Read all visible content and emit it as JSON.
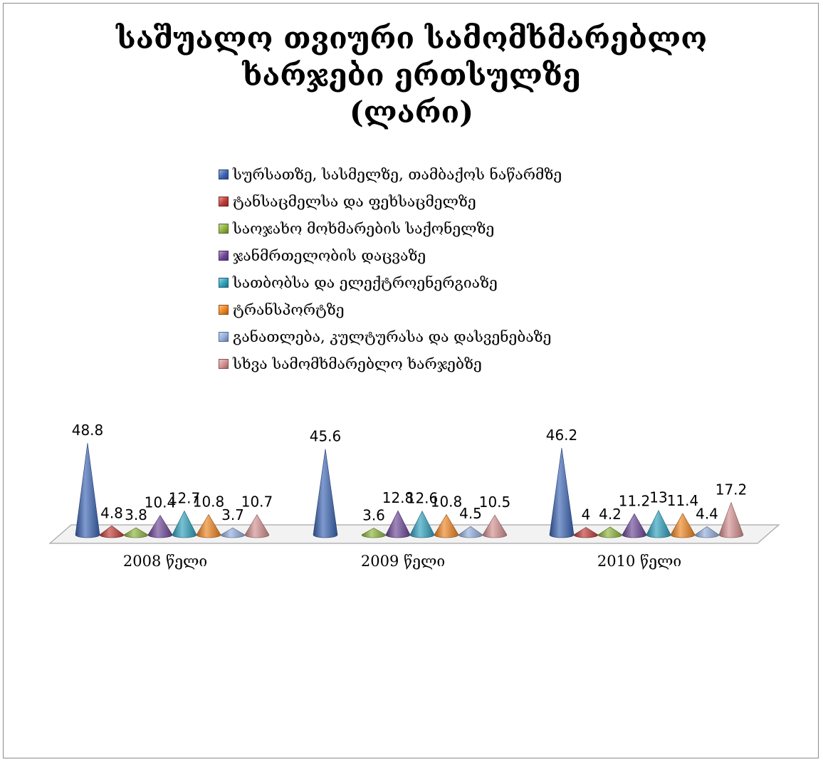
{
  "chart_data": {
    "type": "bar",
    "title_lines": [
      "საშუალო თვიური სამომხმარებლო",
      "ხარჯები ერთსულზე",
      "(ლარი)"
    ],
    "categories": [
      "2008 წელი",
      "2009 წელი",
      "2010 წელი"
    ],
    "ylim": [
      0,
      50
    ],
    "grid": false,
    "legend_position": "top",
    "series": [
      {
        "name": "სურსათზე, სასმელზე, თამბაქოს ნაწარმზე",
        "color": "#3a64b4",
        "values": [
          48.8,
          45.6,
          46.2
        ]
      },
      {
        "name": "ტანსაცმელსა და ფეხსაცმელზე",
        "color": "#c03a36",
        "values": [
          4.8,
          null,
          4
        ]
      },
      {
        "name": "საოჯახო მოხმარების საქონელზე",
        "color": "#8db43c",
        "values": [
          3.8,
          3.6,
          4.2
        ]
      },
      {
        "name": "ჯანმრთელობის დაცვაზე",
        "color": "#6c4697",
        "values": [
          10.4,
          12.8,
          11.2
        ]
      },
      {
        "name": "სათბობსა და ელექტროენერგიაზე",
        "color": "#2ea0bd",
        "values": [
          12.7,
          12.6,
          13
        ]
      },
      {
        "name": "ტრანსპორტზე",
        "color": "#ee8420",
        "values": [
          10.8,
          10.8,
          11.4
        ]
      },
      {
        "name": "განათლება, კულტურასა და დასვენებაზე",
        "color": "#92aedd",
        "values": [
          3.7,
          4.5,
          4.4
        ]
      },
      {
        "name": "სხვა სამომხმარებლო ხარჯებზე",
        "color": "#d48e8e",
        "values": [
          10.7,
          10.5,
          17.2
        ]
      }
    ]
  }
}
